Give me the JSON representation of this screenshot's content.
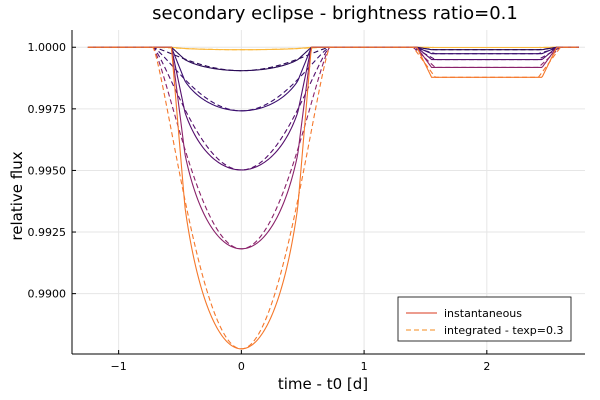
{
  "chart_data": {
    "type": "line",
    "title": "secondary eclipse - brightness ratio=0.1",
    "xlabel": "time - t0 [d]",
    "ylabel": "relative flux",
    "xlim": [
      -1.38,
      2.8
    ],
    "ylim": [
      0.98755,
      1.0007
    ],
    "xticks": [
      -1,
      0,
      1,
      2
    ],
    "yticks": [
      0.99,
      0.9925,
      0.995,
      0.9975,
      1.0
    ],
    "xtick_labels": [
      "−1",
      "0",
      "1",
      "2"
    ],
    "ytick_labels": [
      "0.9900",
      "0.9925",
      "0.9950",
      "0.9975",
      "1.0000"
    ],
    "grid": true,
    "legend_position": "bottom-right",
    "legend": [
      {
        "label": "instantaneous",
        "style": "solid",
        "color": "#e0604a"
      },
      {
        "label": "integrated - texp=0.3",
        "style": "dashed",
        "color": "#f7a24a"
      }
    ],
    "transit": {
      "t_start": -0.57,
      "t_full_start": -0.46,
      "t_full_end": 0.46,
      "t_end": 0.57
    },
    "eclipse": {
      "t_start": 1.43,
      "t_full_start": 1.55,
      "t_full_end": 2.45,
      "t_end": 2.57
    },
    "integrated_window": {
      "t_start": -0.72,
      "t_end": 0.72
    },
    "series": [
      {
        "depth": 0.0001,
        "eclipse_depth": 1e-05,
        "color": "#fcb83a"
      },
      {
        "depth": 0.00095,
        "eclipse_depth": 0.0001,
        "color": "#2a0a57"
      },
      {
        "depth": 0.00258,
        "eclipse_depth": 0.00026,
        "color": "#3b0f6f"
      },
      {
        "depth": 0.00498,
        "eclipse_depth": 0.0005,
        "color": "#550f6d"
      },
      {
        "depth": 0.00818,
        "eclipse_depth": 0.00082,
        "color": "#8a226a"
      },
      {
        "depth": 0.01224,
        "eclipse_depth": 0.00122,
        "color": "#f5782b"
      }
    ]
  }
}
